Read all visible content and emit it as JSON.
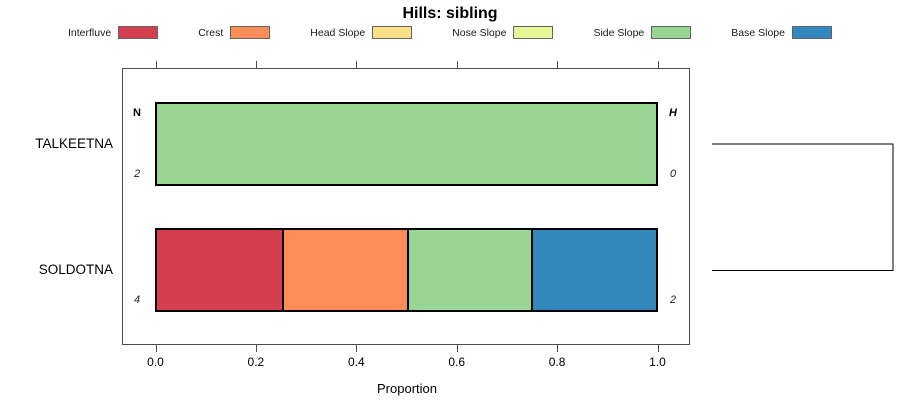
{
  "chart_data": {
    "type": "bar",
    "variant": "horizontal-stacked-proportion",
    "title": "Hills: sibling",
    "xlabel": "Proportion",
    "xlim": [
      0,
      1
    ],
    "x_tick_values": [
      0.0,
      0.2,
      0.4,
      0.6,
      0.8,
      1.0
    ],
    "x_tick_labels": [
      "0.0",
      "0.2",
      "0.4",
      "0.6",
      "0.8",
      "1.0"
    ],
    "legend_position": "top",
    "categories": [
      "Interfluve",
      "Crest",
      "Head Slope",
      "Nose Slope",
      "Side Slope",
      "Base Slope"
    ],
    "palette": {
      "Interfluve": "#D53E4F",
      "Crest": "#FC8D59",
      "Head Slope": "#FEE08B",
      "Nose Slope": "#E6F598",
      "Side Slope": "#99D594",
      "Base Slope": "#3288BD"
    },
    "columns": {
      "left": "N",
      "right": "H"
    },
    "rows": [
      {
        "label": "TALKEETNA",
        "n": "2",
        "h": "0",
        "segments": [
          {
            "category": "Side Slope",
            "value": 1.0
          }
        ]
      },
      {
        "label": "SOLDOTNA",
        "n": "4",
        "h": "2",
        "segments": [
          {
            "category": "Interfluve",
            "value": 0.25
          },
          {
            "category": "Crest",
            "value": 0.25
          },
          {
            "category": "Side Slope",
            "value": 0.25
          },
          {
            "category": "Base Slope",
            "value": 0.25
          }
        ]
      }
    ],
    "dendrogram": {
      "joined_rows": [
        "TALKEETNA",
        "SOLDOTNA"
      ]
    },
    "line_color": "#000000",
    "border_color": "#4d4d4d"
  }
}
